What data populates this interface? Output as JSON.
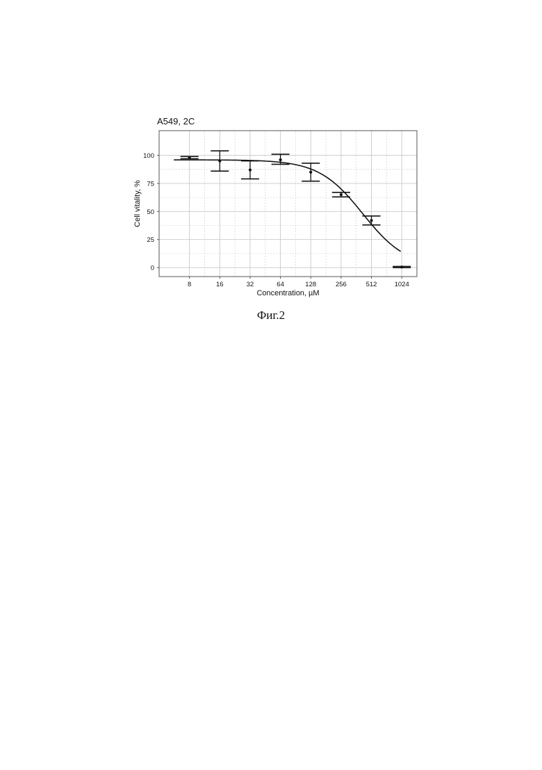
{
  "caption": "Фиг.2",
  "chart_data": {
    "type": "scatter",
    "title": "A549, 2C",
    "xlabel": "Concentration, µM",
    "ylabel": "Cell vitality, %",
    "x_scale": "log2",
    "x_ticks": [
      8,
      16,
      32,
      64,
      128,
      256,
      512,
      1024
    ],
    "x_tick_labels": [
      "8",
      "16",
      "32",
      "64",
      "128",
      "256",
      "512",
      "1024"
    ],
    "y_ticks": [
      0,
      25,
      50,
      75,
      100
    ],
    "y_tick_labels": [
      "0",
      "25",
      "50",
      "75",
      "100"
    ],
    "xlim": [
      4,
      1448
    ],
    "ylim": [
      -8,
      122
    ],
    "grid": true,
    "legend": "none",
    "series": [
      {
        "points": [
          {
            "x": 8,
            "y": 98,
            "err_low": 97,
            "err_high": 99
          },
          {
            "x": 16,
            "y": 95,
            "err_low": 86,
            "err_high": 104
          },
          {
            "x": 32,
            "y": 87,
            "err_low": 79,
            "err_high": 95
          },
          {
            "x": 64,
            "y": 96,
            "err_low": 92,
            "err_high": 101
          },
          {
            "x": 128,
            "y": 85,
            "err_low": 77,
            "err_high": 93
          },
          {
            "x": 256,
            "y": 65,
            "err_low": 63,
            "err_high": 67
          },
          {
            "x": 512,
            "y": 42,
            "err_low": 38,
            "err_high": 46
          },
          {
            "x": 1024,
            "y": 0.5,
            "err_low": 0,
            "err_high": 1
          }
        ]
      }
    ],
    "fit_curve": {
      "type": "logistic",
      "top": 96,
      "bottom": 0,
      "ic50": 420,
      "hill": 2,
      "x_start": 5.6,
      "x_end": 1000
    },
    "colors": {
      "line": "#111111",
      "grid": "#c8c8c8",
      "frame": "#555555",
      "background": "#ffffff"
    }
  }
}
